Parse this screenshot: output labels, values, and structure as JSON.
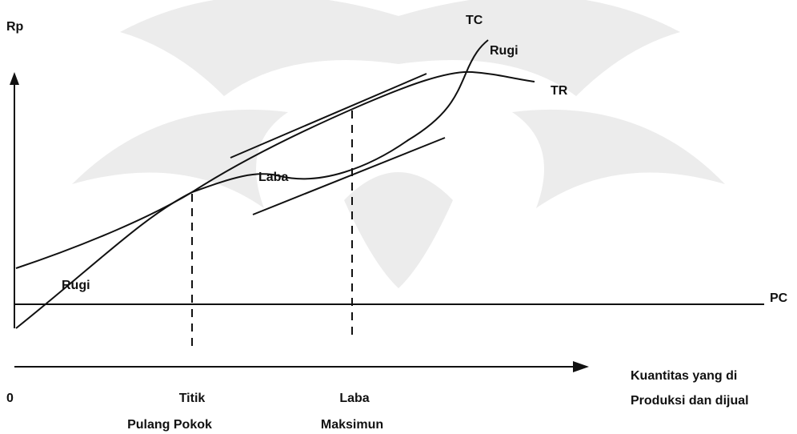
{
  "axes": {
    "y_label": "Rp",
    "origin": "0",
    "x_line_label": "PC",
    "x_label_line1": "Kuantitas yang di",
    "x_label_line2": "Produksi dan dijual"
  },
  "curves": {
    "tc": "TC",
    "tr": "TR"
  },
  "regions": {
    "loss_top": "Rugi",
    "profit": "Laba",
    "loss_bottom": "Rugi"
  },
  "markers": {
    "break_even_line1": "Titik",
    "break_even_line2": "Pulang Pokok",
    "max_profit_line1": "Laba",
    "max_profit_line2": "Maksimun"
  }
}
